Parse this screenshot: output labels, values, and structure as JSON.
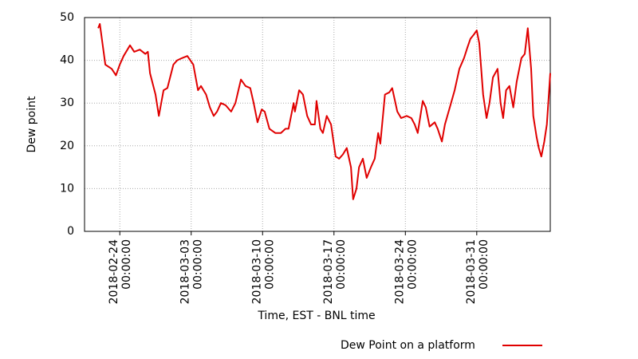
{
  "chart_data": {
    "type": "line",
    "xlabel": "Time, EST - BNL time",
    "ylabel": "Dew point",
    "xlim": [
      "2018-02-20 13:00:00",
      "2018-04-07 05:00:00"
    ],
    "xticks": [
      "2018-02-24 00:00:00",
      "2018-03-03 00:00:00",
      "2018-03-10 00:00:00",
      "2018-03-17 00:00:00",
      "2018-03-24 00:00:00",
      "2018-03-31 00:00:00"
    ],
    "ylim": [
      0,
      50
    ],
    "yticks": [
      0,
      10,
      20,
      30,
      40,
      50
    ],
    "grid": true,
    "legend": "bottom right",
    "x": [
      "2018-02-21 21:00:00",
      "2018-02-22 01:00:00",
      "2018-02-22 14:00:00",
      "2018-02-23 05:00:00",
      "2018-02-23 15:00:00",
      "2018-02-24 00:00:00",
      "2018-02-24 09:00:00",
      "2018-02-25 00:00:00",
      "2018-02-25 10:00:00",
      "2018-02-25 23:00:00",
      "2018-02-26 12:00:00",
      "2018-02-26 18:00:00",
      "2018-02-26 23:00:00",
      "2018-02-27 12:00:00",
      "2018-02-27 20:00:00",
      "2018-02-28 07:00:00",
      "2018-02-28 16:00:00",
      "2018-03-01 06:00:00",
      "2018-03-01 15:00:00",
      "2018-03-02 02:00:00",
      "2018-03-02 15:00:00",
      "2018-03-03 05:00:00",
      "2018-03-03 16:00:00",
      "2018-03-03 23:00:00",
      "2018-03-04 11:00:00",
      "2018-03-04 20:00:00",
      "2018-03-05 05:00:00",
      "2018-03-05 13:00:00",
      "2018-03-05 22:00:00",
      "2018-03-06 09:00:00",
      "2018-03-06 22:00:00",
      "2018-03-07 08:00:00",
      "2018-03-07 21:00:00",
      "2018-03-08 08:00:00",
      "2018-03-08 19:00:00",
      "2018-03-09 03:00:00",
      "2018-03-09 12:00:00",
      "2018-03-09 22:00:00",
      "2018-03-10 05:00:00",
      "2018-03-10 16:00:00",
      "2018-03-11 06:00:00",
      "2018-03-11 19:00:00",
      "2018-03-12 06:00:00",
      "2018-03-12 13:00:00",
      "2018-03-13 01:00:00",
      "2018-03-13 04:00:00",
      "2018-03-13 14:00:00",
      "2018-03-13 23:00:00",
      "2018-03-14 09:00:00",
      "2018-03-14 18:00:00",
      "2018-03-15 03:00:00",
      "2018-03-15 07:00:00",
      "2018-03-15 16:00:00",
      "2018-03-15 22:00:00",
      "2018-03-16 07:00:00",
      "2018-03-16 17:00:00",
      "2018-03-17 04:00:00",
      "2018-03-17 12:00:00",
      "2018-03-17 21:00:00",
      "2018-03-18 06:00:00",
      "2018-03-18 16:00:00",
      "2018-03-18 21:00:00",
      "2018-03-19 05:00:00",
      "2018-03-19 11:00:00",
      "2018-03-19 20:00:00",
      "2018-03-20 05:00:00",
      "2018-03-20 15:00:00",
      "2018-03-21 00:00:00",
      "2018-03-21 08:00:00",
      "2018-03-21 13:00:00",
      "2018-03-22 00:00:00",
      "2018-03-22 10:00:00",
      "2018-03-22 17:00:00",
      "2018-03-23 05:00:00",
      "2018-03-23 14:00:00",
      "2018-03-24 03:00:00",
      "2018-03-24 14:00:00",
      "2018-03-24 22:00:00",
      "2018-03-25 05:00:00",
      "2018-03-25 17:00:00",
      "2018-03-26 00:00:00",
      "2018-03-26 09:00:00",
      "2018-03-26 21:00:00",
      "2018-03-27 04:00:00",
      "2018-03-27 14:00:00",
      "2018-03-27 21:00:00",
      "2018-03-28 10:00:00",
      "2018-03-28 20:00:00",
      "2018-03-29 07:00:00",
      "2018-03-29 18:00:00",
      "2018-03-30 02:00:00",
      "2018-03-30 09:00:00",
      "2018-03-30 17:00:00",
      "2018-03-31 00:00:00",
      "2018-03-31 06:00:00",
      "2018-03-31 15:00:00",
      "2018-03-31 23:00:00",
      "2018-04-01 06:00:00",
      "2018-04-01 14:00:00",
      "2018-04-02 01:00:00",
      "2018-04-02 08:00:00",
      "2018-04-02 14:00:00",
      "2018-04-02 21:00:00",
      "2018-04-03 05:00:00",
      "2018-04-03 14:00:00",
      "2018-04-03 22:00:00",
      "2018-04-04 09:00:00",
      "2018-04-04 17:00:00",
      "2018-04-05 00:00:00",
      "2018-04-05 08:00:00",
      "2018-04-05 13:00:00",
      "2018-04-05 21:00:00",
      "2018-04-06 02:00:00",
      "2018-04-06 08:00:00",
      "2018-04-06 15:00:00",
      "2018-04-06 21:00:00",
      "2018-04-07 05:00:00"
    ],
    "series": [
      {
        "name": "Dew Point on a platform",
        "color": "#e00000",
        "values": [
          47.5,
          48.5,
          39,
          38,
          36.5,
          39,
          41,
          43.5,
          42,
          42.5,
          41.5,
          42,
          37,
          32,
          27,
          33,
          33.5,
          39,
          40,
          40.5,
          41,
          39,
          33,
          34,
          32,
          29,
          27,
          28,
          30,
          29.5,
          28,
          30,
          35.5,
          34,
          33.5,
          30,
          25.5,
          28.5,
          28,
          24,
          23,
          23,
          24,
          24,
          30,
          28,
          33,
          32,
          27,
          25,
          25,
          30.5,
          24,
          23,
          27,
          25,
          17.5,
          17,
          18,
          19.5,
          15,
          7.5,
          10,
          15,
          17,
          12.5,
          15,
          17,
          23,
          20.5,
          32,
          32.5,
          33.5,
          28,
          26.5,
          27,
          26.5,
          25,
          23,
          30.5,
          29,
          24.5,
          25.5,
          24,
          21,
          25,
          29.5,
          33,
          38,
          40.5,
          43,
          45,
          46,
          47,
          44,
          32,
          26.5,
          30,
          36,
          38,
          30,
          26.5,
          33,
          34,
          29,
          35,
          40.5,
          41.5,
          47.5,
          38,
          27,
          22,
          19.5,
          17.5,
          21,
          25,
          37
        ]
      }
    ]
  }
}
